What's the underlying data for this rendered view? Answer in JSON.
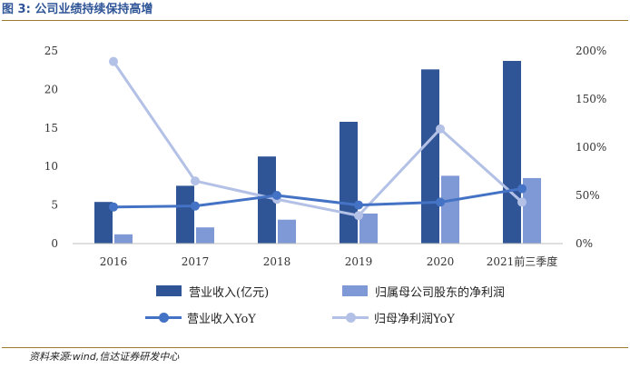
{
  "header": {
    "figure_label": "图 3:",
    "title": "公司业绩持续保持高增"
  },
  "source": {
    "text": "资料来源:wind,信达证券研发中心"
  },
  "colors": {
    "revenue_bar": "#2f5597",
    "profit_bar": "#7f98d6",
    "revenue_yoy_line": "#4472c4",
    "profit_yoy_line": "#b4c1e6"
  },
  "chart_data": {
    "type": "bar",
    "categories": [
      "2016",
      "2017",
      "2018",
      "2019",
      "2020",
      "2021前三季度"
    ],
    "left_axis": {
      "ylim": [
        0,
        25
      ],
      "ticks": [
        0,
        5,
        10,
        15,
        20,
        25
      ]
    },
    "right_axis": {
      "ylim": [
        0,
        200
      ],
      "ticks": [
        "0%",
        "50%",
        "100%",
        "150%",
        "200%"
      ],
      "tick_values": [
        0,
        50,
        100,
        150,
        200
      ]
    },
    "series": [
      {
        "name": "营业收入(亿元)",
        "kind": "bar",
        "axis": "left",
        "values": [
          5.4,
          7.5,
          11.3,
          15.8,
          22.6,
          23.7
        ]
      },
      {
        "name": "归属母公司股东的净利润",
        "kind": "bar",
        "axis": "left",
        "values": [
          1.2,
          2.1,
          3.1,
          3.9,
          8.8,
          8.5
        ]
      },
      {
        "name": "营业收入YoY",
        "kind": "line",
        "axis": "right",
        "values": [
          38,
          39,
          50,
          40,
          43,
          57
        ]
      },
      {
        "name": "归母净利润YoY",
        "kind": "line",
        "axis": "right",
        "values": [
          189,
          65,
          46,
          29,
          119,
          43
        ]
      }
    ],
    "legend_placement": "bottom",
    "grid": false
  }
}
